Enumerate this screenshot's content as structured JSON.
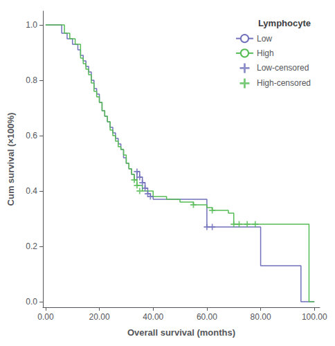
{
  "chart_data": {
    "type": "step",
    "xlabel": "Overall survival (months)",
    "ylabel": "Cum survival (×100%)",
    "xlim": [
      -1,
      102
    ],
    "ylim": [
      -0.02,
      1.05
    ],
    "xticks": [
      {
        "value": 0,
        "label": "0.00"
      },
      {
        "value": 20,
        "label": "20.00"
      },
      {
        "value": 40,
        "label": "40.00"
      },
      {
        "value": 60,
        "label": "60.00"
      },
      {
        "value": 80,
        "label": "80.00"
      },
      {
        "value": 100,
        "label": "100.00"
      }
    ],
    "yticks": [
      {
        "value": 0.0,
        "label": "0.0"
      },
      0.2,
      0.4,
      0.6,
      0.8,
      {
        "value": 1.0,
        "label": "1.0"
      }
    ],
    "grid": false,
    "legend": "upper right",
    "legend_title": "Lymphocyte",
    "series": [
      {
        "name": "Low",
        "type": "step",
        "color": "#7070bb",
        "x": [
          0,
          2,
          4,
          6,
          8,
          10,
          12,
          13,
          14,
          15,
          16,
          17,
          18,
          19,
          20,
          21,
          22,
          23,
          24,
          25,
          26,
          27,
          28,
          29,
          30,
          31,
          32,
          33,
          34,
          35,
          36,
          37,
          38,
          39,
          40,
          55,
          60,
          62,
          65,
          70,
          75,
          80,
          82,
          95,
          100
        ],
        "values": [
          1.0,
          1.0,
          1.0,
          0.97,
          0.95,
          0.93,
          0.91,
          0.89,
          0.87,
          0.85,
          0.83,
          0.8,
          0.77,
          0.75,
          0.72,
          0.69,
          0.67,
          0.65,
          0.63,
          0.61,
          0.59,
          0.57,
          0.55,
          0.52,
          0.5,
          0.48,
          0.46,
          0.44,
          0.47,
          0.45,
          0.43,
          0.41,
          0.39,
          0.38,
          0.37,
          0.37,
          0.27,
          0.27,
          0.27,
          0.27,
          0.27,
          0.13,
          0.13,
          0.0,
          0.0
        ]
      },
      {
        "name": "High",
        "type": "step",
        "color": "#55bb55",
        "x": [
          0,
          2,
          5,
          7,
          9,
          11,
          13,
          14,
          15,
          16,
          17,
          18,
          19,
          20,
          21,
          22,
          23,
          24,
          25,
          26,
          27,
          28,
          29,
          30,
          31,
          32,
          33,
          34,
          36,
          40,
          45,
          50,
          55,
          60,
          62,
          65,
          68,
          70,
          72,
          75,
          78,
          80,
          83,
          90,
          95,
          98,
          100
        ],
        "values": [
          1.0,
          1.0,
          1.0,
          0.97,
          0.95,
          0.93,
          0.88,
          0.86,
          0.84,
          0.82,
          0.79,
          0.76,
          0.74,
          0.72,
          0.69,
          0.67,
          0.65,
          0.62,
          0.6,
          0.58,
          0.56,
          0.55,
          0.53,
          0.5,
          0.48,
          0.46,
          0.44,
          0.42,
          0.4,
          0.38,
          0.37,
          0.36,
          0.35,
          0.34,
          0.33,
          0.33,
          0.32,
          0.28,
          0.28,
          0.28,
          0.28,
          0.28,
          0.28,
          0.28,
          0.28,
          0.0,
          0.0
        ]
      },
      {
        "name": "Low-censored",
        "type": "scatter",
        "marker": "plus",
        "color": "#7070bb",
        "x": [
          34,
          35,
          36,
          37,
          38,
          39,
          60,
          62
        ],
        "values": [
          0.47,
          0.45,
          0.43,
          0.41,
          0.39,
          0.38,
          0.27,
          0.27
        ]
      },
      {
        "name": "High-censored",
        "type": "scatter",
        "marker": "plus",
        "color": "#55bb55",
        "x": [
          33,
          34,
          35,
          55,
          62,
          70,
          72,
          75,
          78
        ],
        "values": [
          0.44,
          0.42,
          0.4,
          0.35,
          0.33,
          0.28,
          0.28,
          0.28,
          0.28
        ]
      }
    ]
  }
}
